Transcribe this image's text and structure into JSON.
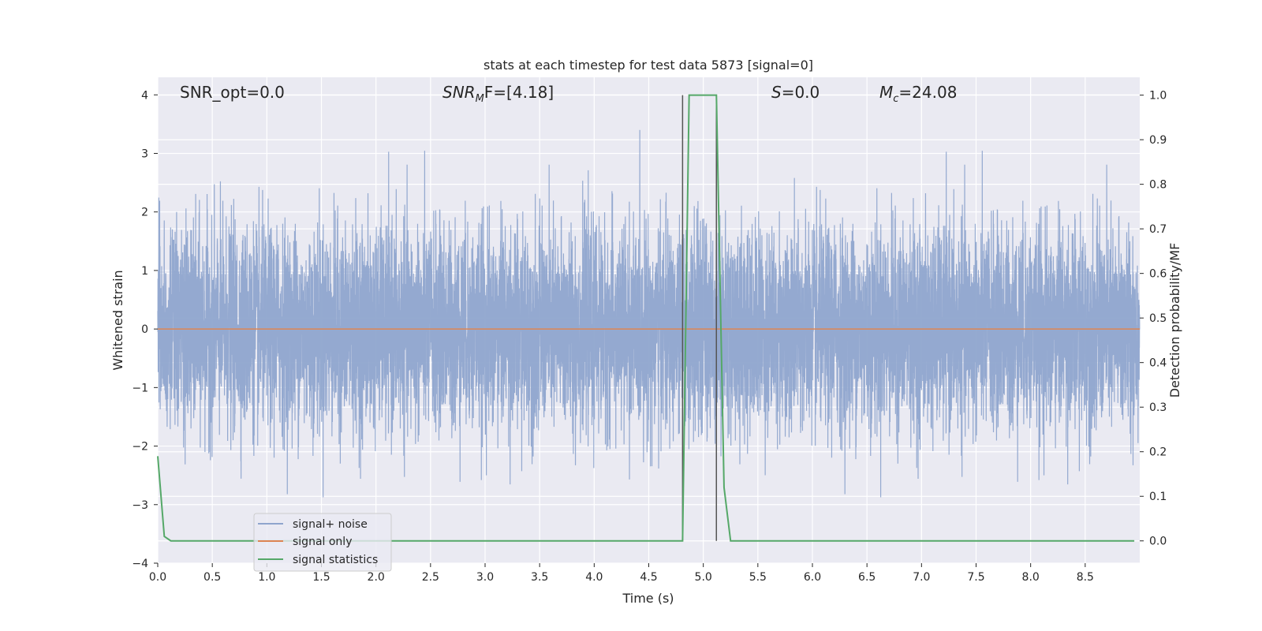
{
  "chart_data": {
    "type": "line",
    "title": "stats at each timestep for test data 5873 [signal=0]",
    "xlabel": "Time (s)",
    "ylabel": "Whitened strain",
    "ylabel_right": "Detection probability/MF",
    "xlim": [
      0,
      9.0
    ],
    "ylim": [
      -4.0,
      4.3
    ],
    "ylim_right": [
      -0.05,
      1.04
    ],
    "x_ticks": [
      "0.0",
      "0.5",
      "1.0",
      "1.5",
      "2.0",
      "2.5",
      "3.0",
      "3.5",
      "4.0",
      "4.5",
      "5.0",
      "5.5",
      "6.0",
      "6.5",
      "7.0",
      "7.5",
      "8.0",
      "8.5"
    ],
    "y_ticks": [
      "4",
      "3",
      "2",
      "1",
      "0",
      "−1",
      "−2",
      "−3",
      "−4"
    ],
    "y_ticks_right": [
      "1.0",
      "0.9",
      "0.8",
      "0.7",
      "0.6",
      "0.5",
      "0.4",
      "0.3",
      "0.2",
      "0.1",
      "0.0"
    ],
    "grid": true,
    "legend_position": "lower-left",
    "annotations": {
      "snr_opt": "SNR_opt=0.0",
      "snr_mf_main": "SNR",
      "snr_mf_sub": "M",
      "snr_mf_rest": "F=[4.18]",
      "s_main": "S",
      "s_rest": "=0.0",
      "mc_main": "M",
      "mc_sub": "c",
      "mc_rest": "=24.08"
    },
    "vertical_lines": [
      4.81,
      5.12
    ],
    "series": [
      {
        "name": "signal+ noise",
        "color": "#8fa5cd",
        "axis": "left",
        "noise_std": 0.85,
        "min": -3.7,
        "max": 3.4,
        "samples_per_second": 1024
      },
      {
        "name": "signal only",
        "color": "#dd8452",
        "axis": "left",
        "x": [
          0,
          9.0
        ],
        "y": [
          0,
          0
        ]
      },
      {
        "name": "signal statistics",
        "color": "#55a868",
        "axis": "right",
        "x": [
          0.0,
          0.06,
          0.12,
          4.75,
          4.81,
          4.87,
          5.12,
          5.19,
          5.25,
          8.95
        ],
        "y": [
          0.19,
          0.01,
          0.0,
          0.0,
          0.0,
          1.0,
          1.0,
          0.12,
          0.0,
          0.0
        ]
      }
    ]
  },
  "colors": {
    "plot_bg": "#eaeaf2",
    "grid": "#ffffff",
    "vline": "#555555"
  }
}
